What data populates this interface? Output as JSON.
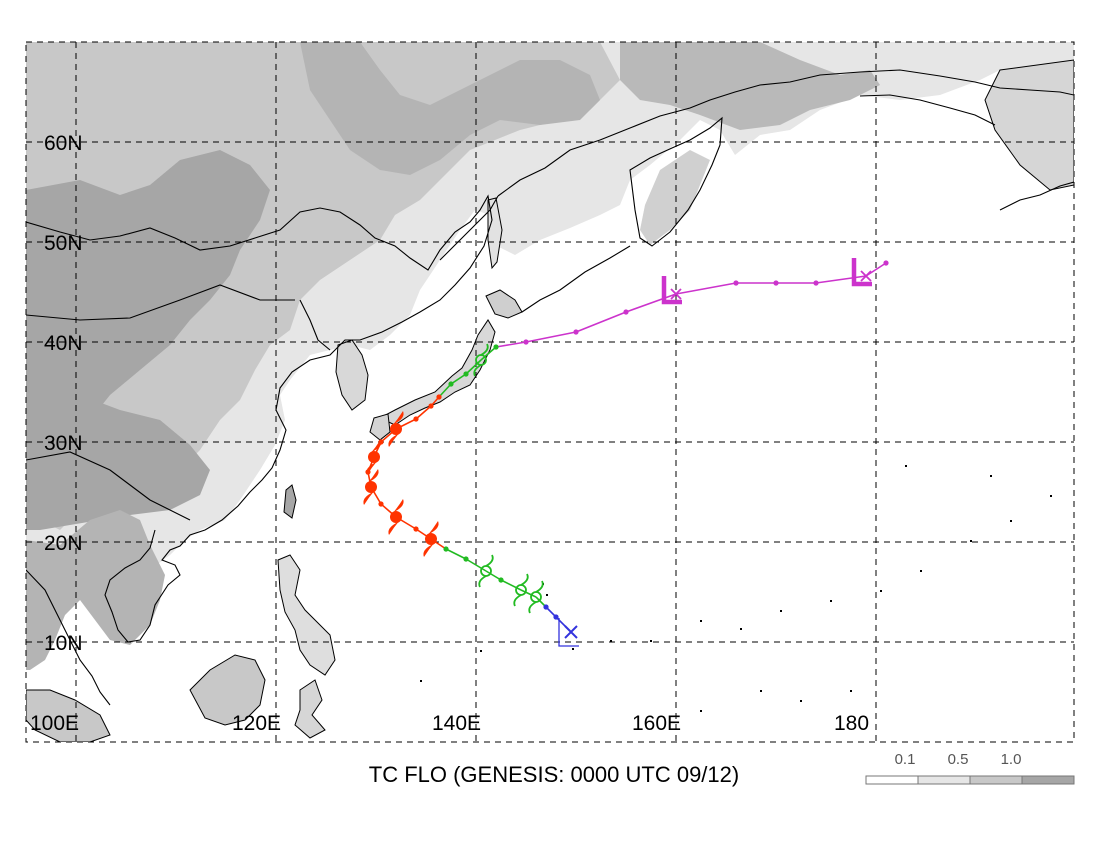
{
  "title": "TC FLO (GENESIS: 0000 UTC 09/12)",
  "lat_labels": [
    "10N",
    "20N",
    "30N",
    "40N",
    "50N",
    "60N"
  ],
  "lon_labels": [
    "100E",
    "120E",
    "140E",
    "160E",
    "180"
  ],
  "colorbar": {
    "labels": [
      "0.1",
      "0.5",
      "1.0"
    ],
    "colors": [
      "#ffffff",
      "#e6e6e6",
      "#c8c8c8",
      "#a6a6a6"
    ]
  },
  "colors": {
    "ocean": "#ffffff",
    "coast": "#000000",
    "grid": "#000000",
    "depression": "#3333dd",
    "storm": "#22bb22",
    "typhoon": "#ff3300",
    "extratropical": "#cc33cc"
  },
  "track": [
    {
      "lon": 149.5,
      "lat": 11.0,
      "stage": "depression",
      "marker": "genesis-x"
    },
    {
      "lon": 148.0,
      "lat": 12.5,
      "stage": "depression",
      "marker": "dot"
    },
    {
      "lon": 147.0,
      "lat": 13.5,
      "stage": "depression",
      "marker": "dot"
    },
    {
      "lon": 146.0,
      "lat": 14.5,
      "stage": "storm",
      "marker": "storm"
    },
    {
      "lon": 144.5,
      "lat": 15.2,
      "stage": "storm",
      "marker": "storm"
    },
    {
      "lon": 142.5,
      "lat": 16.2,
      "stage": "storm",
      "marker": "dot"
    },
    {
      "lon": 141.0,
      "lat": 17.1,
      "stage": "storm",
      "marker": "storm"
    },
    {
      "lon": 139.0,
      "lat": 18.3,
      "stage": "storm",
      "marker": "dot"
    },
    {
      "lon": 137.0,
      "lat": 19.3,
      "stage": "storm",
      "marker": "dot"
    },
    {
      "lon": 135.5,
      "lat": 20.3,
      "stage": "typhoon",
      "marker": "typhoon"
    },
    {
      "lon": 134.0,
      "lat": 21.3,
      "stage": "typhoon",
      "marker": "dot"
    },
    {
      "lon": 132.0,
      "lat": 22.5,
      "stage": "typhoon",
      "marker": "typhoon"
    },
    {
      "lon": 130.5,
      "lat": 23.8,
      "stage": "typhoon",
      "marker": "dot"
    },
    {
      "lon": 129.5,
      "lat": 25.5,
      "stage": "typhoon",
      "marker": "typhoon"
    },
    {
      "lon": 129.2,
      "lat": 27.0,
      "stage": "typhoon",
      "marker": "dot"
    },
    {
      "lon": 129.8,
      "lat": 28.5,
      "stage": "typhoon",
      "marker": "typhoon"
    },
    {
      "lon": 130.5,
      "lat": 30.0,
      "stage": "typhoon",
      "marker": "dot"
    },
    {
      "lon": 132.0,
      "lat": 31.3,
      "stage": "typhoon",
      "marker": "typhoon"
    },
    {
      "lon": 134.0,
      "lat": 32.3,
      "stage": "typhoon",
      "marker": "dot"
    },
    {
      "lon": 135.5,
      "lat": 33.6,
      "stage": "typhoon",
      "marker": "dot"
    },
    {
      "lon": 136.3,
      "lat": 34.5,
      "stage": "typhoon",
      "marker": "dot"
    },
    {
      "lon": 137.5,
      "lat": 35.8,
      "stage": "storm",
      "marker": "dot"
    },
    {
      "lon": 139.0,
      "lat": 36.8,
      "stage": "storm",
      "marker": "dot"
    },
    {
      "lon": 140.5,
      "lat": 38.2,
      "stage": "storm",
      "marker": "storm"
    },
    {
      "lon": 142.0,
      "lat": 39.5,
      "stage": "storm",
      "marker": "dot"
    },
    {
      "lon": 145.0,
      "lat": 40.0,
      "stage": "extratropical",
      "marker": "dot"
    },
    {
      "lon": 150.0,
      "lat": 41.0,
      "stage": "extratropical",
      "marker": "dot"
    },
    {
      "lon": 155.0,
      "lat": 43.0,
      "stage": "extratropical",
      "marker": "dot"
    },
    {
      "lon": 160.0,
      "lat": 44.8,
      "stage": "extratropical",
      "marker": "low-x"
    },
    {
      "lon": 166.0,
      "lat": 45.9,
      "stage": "extratropical",
      "marker": "dot"
    },
    {
      "lon": 170.0,
      "lat": 45.9,
      "stage": "extratropical",
      "marker": "dot"
    },
    {
      "lon": 174.0,
      "lat": 45.9,
      "stage": "extratropical",
      "marker": "dot"
    },
    {
      "lon": 179.0,
      "lat": 46.6,
      "stage": "extratropical",
      "marker": "low-x"
    },
    {
      "lon": 181.0,
      "lat": 47.9,
      "stage": "extratropical",
      "marker": "dot"
    }
  ]
}
